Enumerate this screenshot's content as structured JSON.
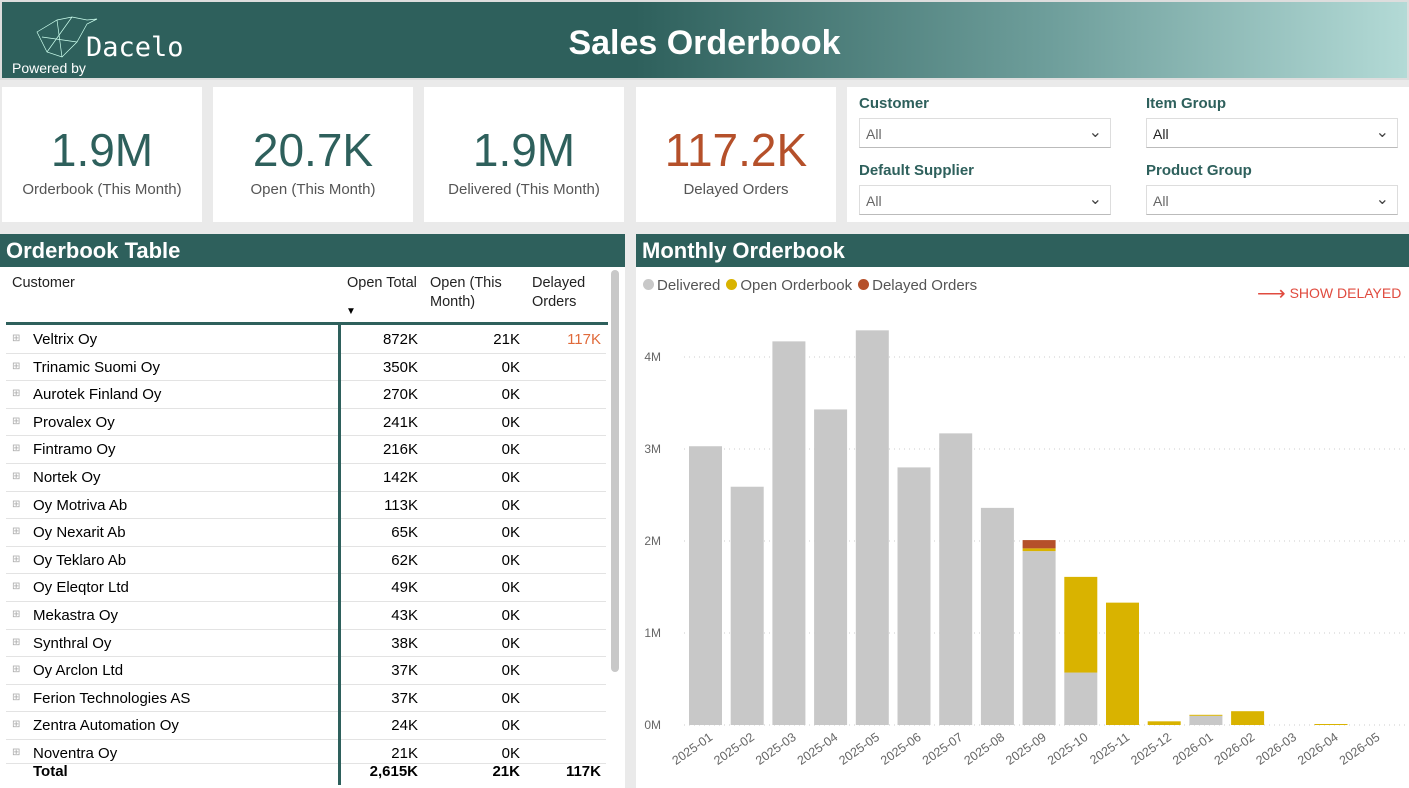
{
  "header": {
    "title": "Sales Orderbook",
    "brand": "Dacelo",
    "powered_by": "Powered by"
  },
  "kpis": [
    {
      "value": "1.9M",
      "label": "Orderbook (This Month)",
      "color": "#2e605c"
    },
    {
      "value": "20.7K",
      "label": "Open (This Month)",
      "color": "#2e605c"
    },
    {
      "value": "1.9M",
      "label": "Delivered (This Month)",
      "color": "#2e605c"
    },
    {
      "value": "117.2K",
      "label": "Delayed Orders",
      "color": "#b5502a"
    }
  ],
  "filters": [
    {
      "label": "Customer",
      "value": "All"
    },
    {
      "label": "Item Group",
      "value": "All"
    },
    {
      "label": "Default Supplier",
      "value": "All"
    },
    {
      "label": "Product Group",
      "value": "All"
    }
  ],
  "table": {
    "title": "Orderbook Table",
    "columns": [
      "Customer",
      "Open Total",
      "Open (This Month)",
      "Delayed Orders"
    ],
    "rows": [
      [
        "Veltrix Oy",
        "872K",
        "21K",
        "117K"
      ],
      [
        "Trinamic Suomi Oy",
        "350K",
        "0K",
        ""
      ],
      [
        "Aurotek Finland Oy",
        "270K",
        "0K",
        ""
      ],
      [
        "Provalex Oy",
        "241K",
        "0K",
        ""
      ],
      [
        "Fintramo Oy",
        "216K",
        "0K",
        ""
      ],
      [
        "Nortek Oy",
        "142K",
        "0K",
        ""
      ],
      [
        "Oy Motriva Ab",
        "113K",
        "0K",
        ""
      ],
      [
        "Oy Nexarit Ab",
        "65K",
        "0K",
        ""
      ],
      [
        "Oy Teklaro Ab",
        "62K",
        "0K",
        ""
      ],
      [
        "Oy Eleqtor Ltd",
        "49K",
        "0K",
        ""
      ],
      [
        "Mekastra Oy",
        "43K",
        "0K",
        ""
      ],
      [
        "Synthral Oy",
        "38K",
        "0K",
        ""
      ],
      [
        "Oy Arclon Ltd",
        "37K",
        "0K",
        ""
      ],
      [
        "Ferion Technologies AS",
        "37K",
        "0K",
        ""
      ],
      [
        "Zentra Automation Oy",
        "24K",
        "0K",
        ""
      ],
      [
        "Noventra Oy",
        "21K",
        "0K",
        ""
      ]
    ],
    "total": [
      "Total",
      "2,615K",
      "21K",
      "117K"
    ]
  },
  "chart": {
    "title": "Monthly Orderbook",
    "show_delayed": "SHOW DELAYED"
  },
  "chart_data": {
    "type": "bar",
    "stacked": true,
    "legend_position": "top-left",
    "grid": true,
    "categories": [
      "2025-01",
      "2025-02",
      "2025-03",
      "2025-04",
      "2025-05",
      "2025-06",
      "2025-07",
      "2025-08",
      "2025-09",
      "2025-10",
      "2025-11",
      "2025-12",
      "2026-01",
      "2026-02",
      "2026-03",
      "2026-04",
      "2026-05"
    ],
    "yticks": [
      "0M",
      "1M",
      "2M",
      "3M",
      "4M"
    ],
    "ylim": [
      0,
      4.3
    ],
    "series": [
      {
        "name": "Delivered",
        "color": "#c8c8c8",
        "values": [
          3.03,
          2.59,
          4.17,
          3.43,
          4.29,
          2.8,
          3.17,
          2.36,
          1.89,
          0.57,
          0,
          0,
          0.1,
          0,
          0,
          0,
          0
        ]
      },
      {
        "name": "Open Orderbook",
        "color": "#d9b300",
        "values": [
          0,
          0,
          0,
          0,
          0,
          0,
          0,
          0,
          0.03,
          1.04,
          1.33,
          0.04,
          0.01,
          0.15,
          0,
          0.005,
          0
        ]
      },
      {
        "name": "Delayed Orders",
        "color": "#b5502a",
        "values": [
          0,
          0,
          0,
          0,
          0,
          0,
          0,
          0,
          0.09,
          0,
          0,
          0,
          0,
          0,
          0,
          0,
          0
        ]
      }
    ]
  }
}
